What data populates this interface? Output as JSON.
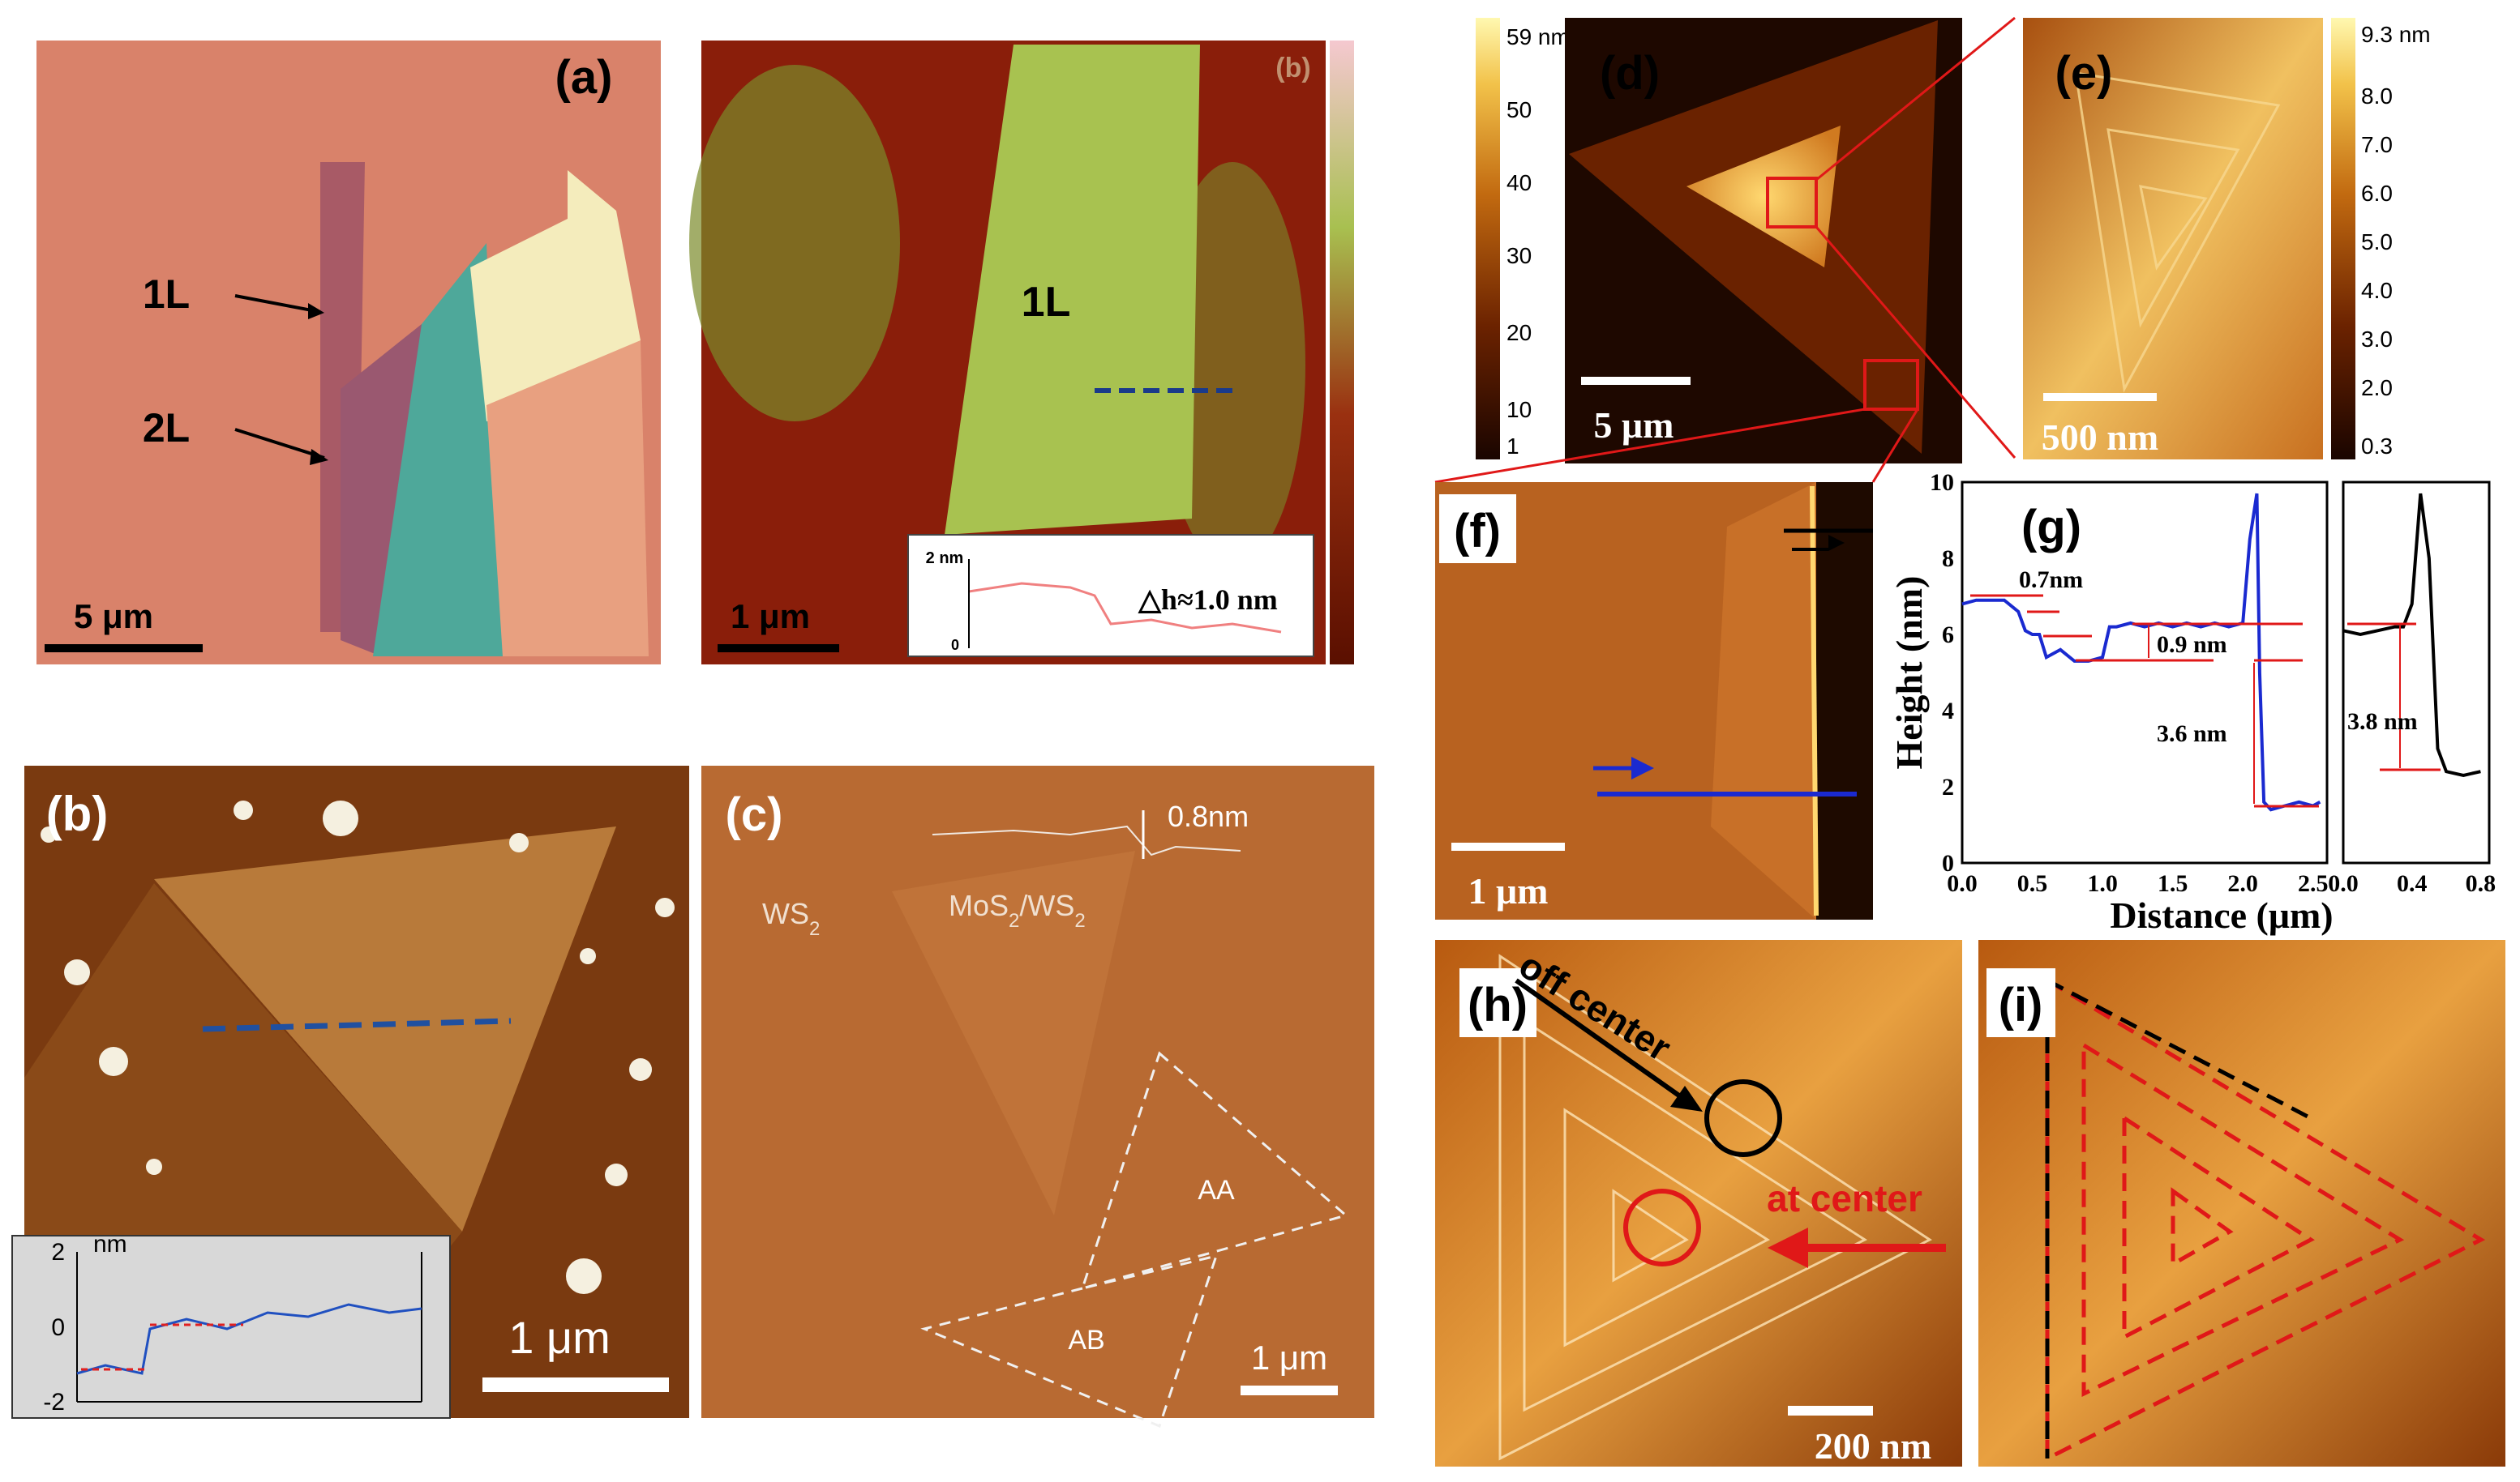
{
  "panels": {
    "a": {
      "tag": "(a)",
      "layer1": "1L",
      "layer2": "2L",
      "scale": "5 μm"
    },
    "b_top": {
      "tag": "(b)",
      "label": "1L",
      "scale": "1 μm",
      "inset_unit": "2 nm",
      "inset_zero": "0",
      "dh": "△h≈1.0 nm"
    },
    "b": {
      "tag": "(b)",
      "scale": "1 μm",
      "inset_unit": "nm",
      "ticks": [
        "2",
        "0",
        "-2"
      ]
    },
    "c": {
      "tag": "(c)",
      "wsa": "WS",
      "wsa_sub": "2",
      "mos": "MoS",
      "mos_sub": "2",
      "mos_mid": "/WS",
      "mos_sub2": "2",
      "step": "0.8nm",
      "aa": "AA",
      "ab": "AB",
      "scale": "1 μm"
    },
    "d": {
      "tag": "(d)",
      "scale": "5 μm",
      "colorbar_ticks": [
        "59 nm",
        "50",
        "40",
        "30",
        "20",
        "10",
        "1"
      ]
    },
    "e": {
      "tag": "(e)",
      "scale": "500 nm",
      "colorbar_ticks": [
        "9.3 nm",
        "8.0",
        "7.0",
        "6.0",
        "5.0",
        "4.0",
        "3.0",
        "2.0",
        "0.3"
      ]
    },
    "f": {
      "tag": "(f)",
      "scale": "1 μm"
    },
    "g": {
      "tag": "(g)",
      "xlabel": "Distance (μm)",
      "ylabel": "Height (nm)",
      "ann1": "0.7nm",
      "ann2": "0.9 nm",
      "ann3": "3.6 nm",
      "ann4": "3.8 nm",
      "xticks_main": [
        "0.0",
        "0.5",
        "1.0",
        "1.5",
        "2.0",
        "2.5"
      ],
      "xticks_side": [
        "0.0",
        "0.4",
        "0.8"
      ],
      "yticks": [
        "10",
        "8",
        "6",
        "4",
        "2",
        "0"
      ]
    },
    "h": {
      "tag": "(h)",
      "off": "off center",
      "at": "at center",
      "scale": "200 nm"
    },
    "i": {
      "tag": "(i)"
    }
  },
  "chart_data": {
    "type": "line",
    "xlabel": "Distance (μm)",
    "ylabel": "Height (nm)",
    "xlim": [
      0,
      2.6
    ],
    "ylim": [
      0,
      10
    ],
    "series": [
      {
        "x": [
          0,
          0.1,
          0.2,
          0.3,
          0.4,
          0.45,
          0.5,
          0.55,
          0.6,
          0.65,
          0.7,
          0.8,
          0.9,
          1.0,
          1.05,
          1.1,
          1.2,
          1.3,
          1.4,
          1.5,
          1.6,
          1.7,
          1.8,
          1.9,
          2.0,
          2.05,
          2.1,
          2.12,
          2.15,
          2.2,
          2.3,
          2.4,
          2.5,
          2.55
        ],
        "y": [
          6.8,
          6.9,
          6.9,
          6.9,
          6.6,
          6.1,
          6.0,
          6.0,
          5.4,
          5.5,
          5.6,
          5.3,
          5.3,
          5.4,
          6.2,
          6.2,
          6.3,
          6.2,
          6.3,
          6.2,
          6.3,
          6.2,
          6.3,
          6.2,
          6.3,
          8.5,
          9.7,
          5.0,
          1.6,
          1.4,
          1.5,
          1.6,
          1.5,
          1.6
        ]
      },
      {
        "x": [
          0,
          0.1,
          0.2,
          0.3,
          0.35,
          0.4,
          0.45,
          0.5,
          0.55,
          0.6,
          0.7,
          0.8
        ],
        "y": [
          6.1,
          6.0,
          6.1,
          6.2,
          6.2,
          6.8,
          9.7,
          8.0,
          3.0,
          2.4,
          2.3,
          2.4
        ]
      }
    ]
  }
}
